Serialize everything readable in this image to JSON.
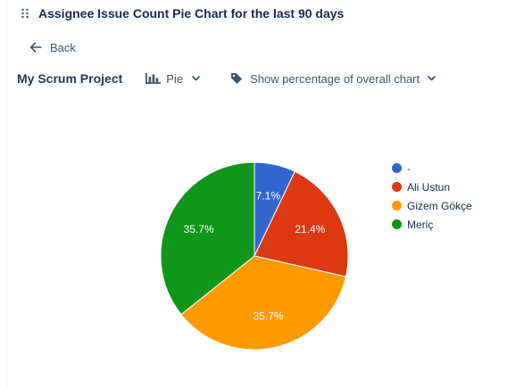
{
  "header": {
    "title": "Assignee Issue Count Pie Chart for the last 90 days"
  },
  "nav": {
    "back_label": "Back"
  },
  "toolbar": {
    "project": "My Scrum Project",
    "chart_type_label": "Pie",
    "percentage_label": "Show percentage of overall chart"
  },
  "icons": {
    "drag": "drag-handle-icon",
    "back": "arrow-left-icon",
    "chart_type": "bar-chart-icon",
    "percentage": "tag-icon",
    "dropdown": "chevron-down-icon"
  },
  "colors": {
    "text": "#172b4d",
    "muted": "#42526e",
    "accent": "#0052cc"
  },
  "chart_data": {
    "type": "pie",
    "title": "",
    "labels": [
      "-",
      "Ali Ustun",
      "Gizem Gökçe",
      "Meriç"
    ],
    "values": [
      7.1,
      21.4,
      35.7,
      35.7
    ],
    "value_labels": [
      "7.1%",
      "21.4%",
      "35.7%",
      "35.7%"
    ],
    "colors": [
      "#3366cc",
      "#dc3912",
      "#ff9900",
      "#109618"
    ],
    "legend_position": "right"
  }
}
